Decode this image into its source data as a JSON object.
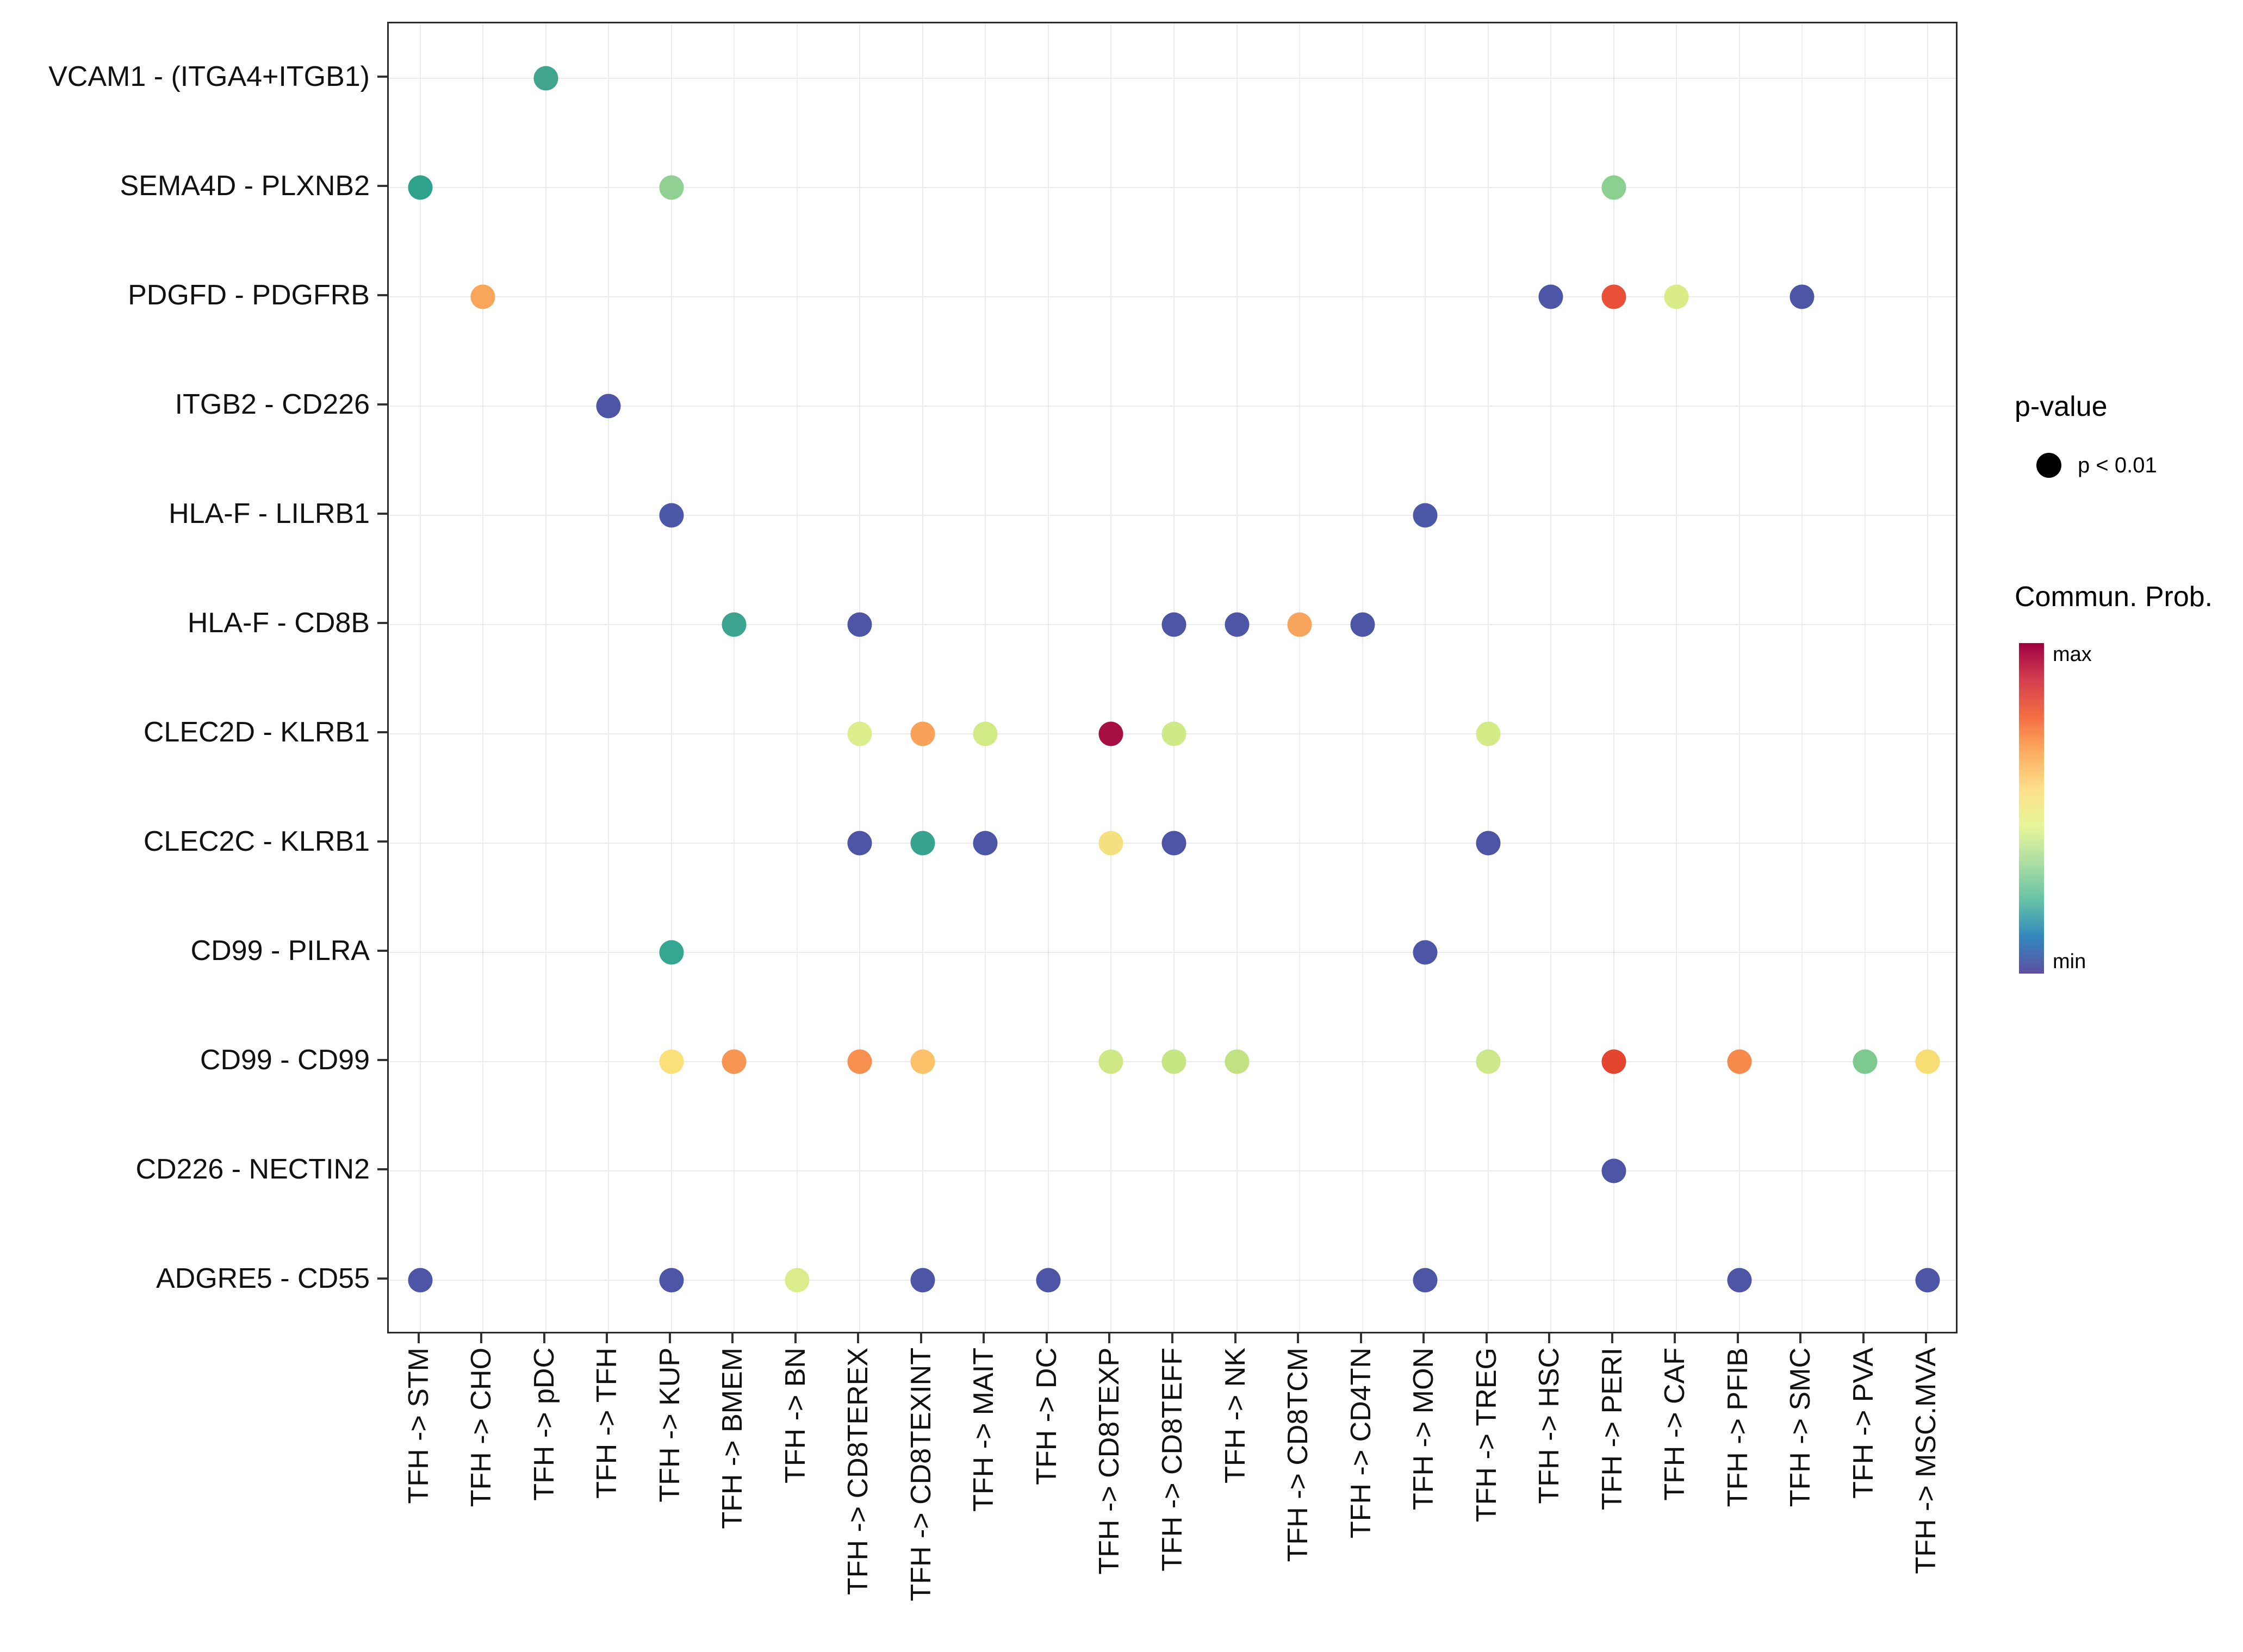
{
  "chart_data": {
    "type": "scatter",
    "subtype": "bubble-dot-plot",
    "title": "",
    "xlabel": "",
    "ylabel": "",
    "grid": true,
    "x_categories": [
      "TFH -> STM",
      "TFH -> CHO",
      "TFH -> pDC",
      "TFH -> TFH",
      "TFH -> KUP",
      "TFH -> BMEM",
      "TFH -> BN",
      "TFH -> CD8TEREX",
      "TFH -> CD8TEXINT",
      "TFH -> MAIT",
      "TFH -> DC",
      "TFH -> CD8TEXP",
      "TFH -> CD8TEFF",
      "TFH -> NK",
      "TFH -> CD8TCM",
      "TFH -> CD4TN",
      "TFH -> MON",
      "TFH -> TREG",
      "TFH -> HSC",
      "TFH -> PERI",
      "TFH -> CAF",
      "TFH -> PFIB",
      "TFH -> SMC",
      "TFH -> PVA",
      "TFH -> MSC.MVA"
    ],
    "y_categories": [
      "VCAM1 - (ITGA4+ITGB1)",
      "SEMA4D - PLXNB2",
      "PDGFD - PDGFRB",
      "ITGB2 - CD226",
      "HLA-F - LILRB1",
      "HLA-F - CD8B",
      "CLEC2D - KLRB1",
      "CLEC2C - KLRB1",
      "CD99 - PILRA",
      "CD99 - CD99",
      "CD226 - NECTIN2",
      "ADGRE5 - CD55"
    ],
    "point_meaning": {
      "size": "p-value (all shown p < 0.01)",
      "color": "Commun. Prob. (min to max)"
    },
    "points": [
      {
        "xi": 2,
        "yi": 0,
        "color": "#41a58d"
      },
      {
        "xi": 0,
        "yi": 1,
        "color": "#2fa28c"
      },
      {
        "xi": 4,
        "yi": 1,
        "color": "#90d092"
      },
      {
        "xi": 19,
        "yi": 1,
        "color": "#8cd091"
      },
      {
        "xi": 1,
        "yi": 2,
        "color": "#f9a65b"
      },
      {
        "xi": 18,
        "yi": 2,
        "color": "#4d55a6"
      },
      {
        "xi": 19,
        "yi": 2,
        "color": "#e8503a"
      },
      {
        "xi": 20,
        "yi": 2,
        "color": "#d9ec85"
      },
      {
        "xi": 22,
        "yi": 2,
        "color": "#4d55a6"
      },
      {
        "xi": 3,
        "yi": 3,
        "color": "#4d55a6"
      },
      {
        "xi": 4,
        "yi": 4,
        "color": "#4d57a8"
      },
      {
        "xi": 16,
        "yi": 4,
        "color": "#4d57a8"
      },
      {
        "xi": 5,
        "yi": 5,
        "color": "#3ba48e"
      },
      {
        "xi": 7,
        "yi": 5,
        "color": "#4d55a6"
      },
      {
        "xi": 12,
        "yi": 5,
        "color": "#4d55a6"
      },
      {
        "xi": 13,
        "yi": 5,
        "color": "#4d55a6"
      },
      {
        "xi": 14,
        "yi": 5,
        "color": "#f9a45c"
      },
      {
        "xi": 15,
        "yi": 5,
        "color": "#4d55a6"
      },
      {
        "xi": 7,
        "yi": 6,
        "color": "#dcee8c"
      },
      {
        "xi": 8,
        "yi": 6,
        "color": "#f9a159"
      },
      {
        "xi": 9,
        "yi": 6,
        "color": "#d2ea86"
      },
      {
        "xi": 11,
        "yi": 6,
        "color": "#a50f44"
      },
      {
        "xi": 12,
        "yi": 6,
        "color": "#cfe986"
      },
      {
        "xi": 17,
        "yi": 6,
        "color": "#d4ea87"
      },
      {
        "xi": 7,
        "yi": 7,
        "color": "#4d55a6"
      },
      {
        "xi": 8,
        "yi": 7,
        "color": "#37a28e"
      },
      {
        "xi": 9,
        "yi": 7,
        "color": "#4d55a6"
      },
      {
        "xi": 11,
        "yi": 7,
        "color": "#f4e07e"
      },
      {
        "xi": 12,
        "yi": 7,
        "color": "#4d55a6"
      },
      {
        "xi": 17,
        "yi": 7,
        "color": "#4d55a6"
      },
      {
        "xi": 4,
        "yi": 8,
        "color": "#35a690"
      },
      {
        "xi": 16,
        "yi": 8,
        "color": "#4d55a6"
      },
      {
        "xi": 4,
        "yi": 9,
        "color": "#fbe07a"
      },
      {
        "xi": 5,
        "yi": 9,
        "color": "#f79552"
      },
      {
        "xi": 7,
        "yi": 9,
        "color": "#f78f4e"
      },
      {
        "xi": 8,
        "yi": 9,
        "color": "#fcc169"
      },
      {
        "xi": 11,
        "yi": 9,
        "color": "#cde884"
      },
      {
        "xi": 12,
        "yi": 9,
        "color": "#c6e583"
      },
      {
        "xi": 13,
        "yi": 9,
        "color": "#c0e282"
      },
      {
        "xi": 17,
        "yi": 9,
        "color": "#cce88a"
      },
      {
        "xi": 19,
        "yi": 9,
        "color": "#e4452f"
      },
      {
        "xi": 21,
        "yi": 9,
        "color": "#f68a4c"
      },
      {
        "xi": 23,
        "yi": 9,
        "color": "#7ec98f"
      },
      {
        "xi": 24,
        "yi": 9,
        "color": "#f8dd74"
      },
      {
        "xi": 19,
        "yi": 10,
        "color": "#4d55a6"
      },
      {
        "xi": 0,
        "yi": 11,
        "color": "#4d55a6"
      },
      {
        "xi": 4,
        "yi": 11,
        "color": "#4d55a6"
      },
      {
        "xi": 6,
        "yi": 11,
        "color": "#daec8c"
      },
      {
        "xi": 8,
        "yi": 11,
        "color": "#4d55a6"
      },
      {
        "xi": 10,
        "yi": 11,
        "color": "#4d55a6"
      },
      {
        "xi": 16,
        "yi": 11,
        "color": "#4d55a6"
      },
      {
        "xi": 21,
        "yi": 11,
        "color": "#4d55a6"
      },
      {
        "xi": 24,
        "yi": 11,
        "color": "#4d55a6"
      }
    ]
  },
  "legend": {
    "pvalue_title": "p-value",
    "pvalue_item": "p < 0.01",
    "pvalue_dot_color": "#000000",
    "colorbar_title": "Commun. Prob.",
    "colorbar_max": "max",
    "colorbar_min": "min",
    "colorbar_colors": [
      "#9e0142",
      "#d53e4f",
      "#f46d43",
      "#fdae61",
      "#fee08b",
      "#e6f598",
      "#abdda4",
      "#66c2a5",
      "#3288bd",
      "#5e4fa2"
    ]
  },
  "style": {
    "grid_color": "#ebebeb",
    "panel_border_color": "#2b2b2b",
    "tick_color": "#333333"
  }
}
